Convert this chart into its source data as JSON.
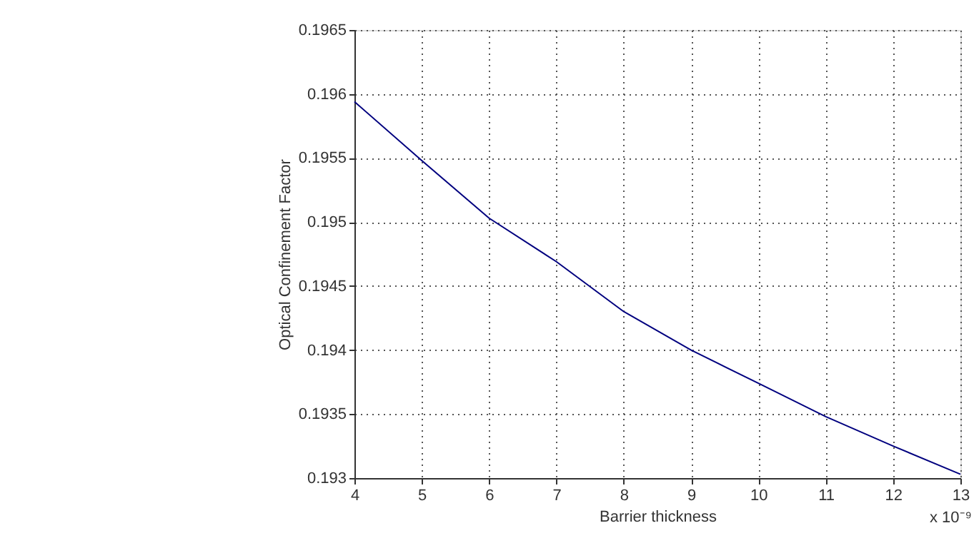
{
  "chart_data": {
    "type": "line",
    "xlabel": "Barrier thickness",
    "ylabel": "Optical Confinement Factor",
    "x": [
      4,
      5,
      6,
      7,
      8,
      9,
      10,
      11,
      12,
      13
    ],
    "series": [
      {
        "color": "#00007f",
        "values": [
          0.19594,
          0.19548,
          0.19503,
          0.19469,
          0.1943,
          0.194,
          0.19374,
          0.19348,
          0.19325,
          0.19303
        ]
      }
    ],
    "xlim": [
      4,
      13
    ],
    "xticks": [
      4,
      5,
      6,
      7,
      8,
      9,
      10,
      11,
      12,
      13
    ],
    "ylim": [
      0.193,
      0.1965
    ],
    "yticks": [
      0.193,
      0.1935,
      0.194,
      0.1945,
      0.195,
      0.1955,
      0.196,
      0.1965
    ],
    "grid": true,
    "line_style": "solid",
    "annotations": [
      "x 10⁻⁹"
    ]
  }
}
